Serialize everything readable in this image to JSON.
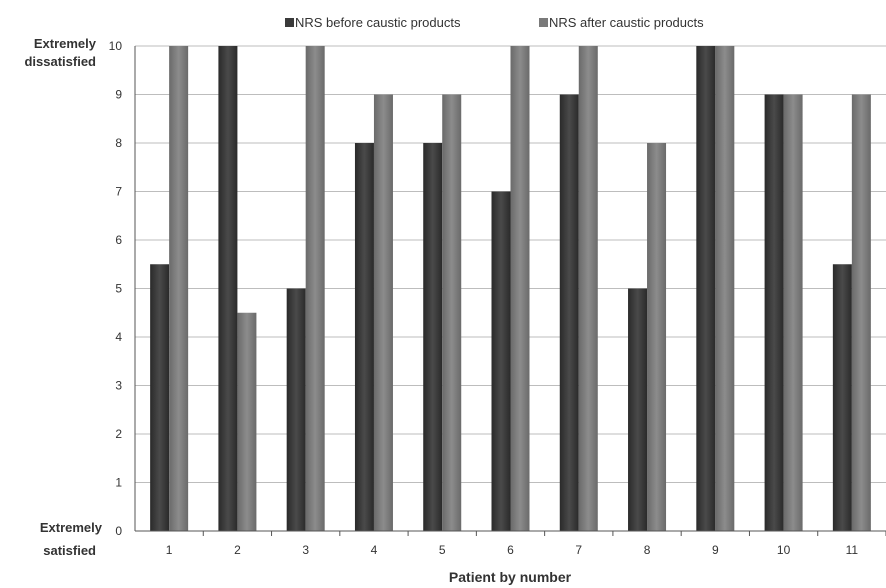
{
  "chart_data": {
    "type": "bar",
    "title": "",
    "xlabel": "Patient by number",
    "ylabel": "",
    "y_top_label": [
      "Extremely",
      "dissatisfied"
    ],
    "y_bottom_label": [
      "Extremely",
      "satisfied"
    ],
    "ylim": [
      0,
      10
    ],
    "yticks": [
      0,
      1,
      2,
      3,
      4,
      5,
      6,
      7,
      8,
      9,
      10
    ],
    "grid": true,
    "legend_position": "top",
    "categories": [
      "1",
      "2",
      "3",
      "4",
      "5",
      "6",
      "7",
      "8",
      "9",
      "10",
      "11"
    ],
    "series": [
      {
        "name": "NRS before caustic products",
        "color": "#3a3a3a",
        "values": [
          5.5,
          10,
          5,
          8,
          8,
          7,
          9,
          5,
          10,
          9,
          5.5
        ]
      },
      {
        "name": "NRS after caustic products",
        "color": "#7a7a7a",
        "values": [
          10,
          4.5,
          10,
          9,
          9,
          10,
          10,
          8,
          10,
          9,
          9
        ]
      }
    ]
  }
}
